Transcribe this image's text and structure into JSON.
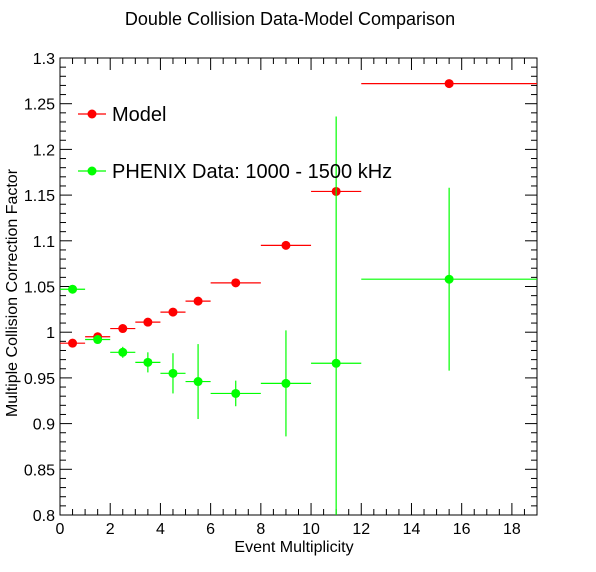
{
  "chart_data": {
    "type": "scatter",
    "title": "Double Collision Data-Model Comparison",
    "xlabel": "Event Multiplicity",
    "ylabel": "Multiple Collision Correction Factor",
    "xlim": [
      0,
      19
    ],
    "ylim": [
      0.8,
      1.3
    ],
    "x_ticks": [
      0,
      2,
      4,
      6,
      8,
      10,
      12,
      14,
      16,
      18
    ],
    "x_tick_labels": [
      "0",
      "2",
      "4",
      "6",
      "8",
      "10",
      "12",
      "14",
      "16",
      "18"
    ],
    "y_ticks": [
      0.8,
      0.85,
      0.9,
      0.95,
      1.0,
      1.05,
      1.1,
      1.15,
      1.2,
      1.25,
      1.3
    ],
    "y_tick_labels": [
      "0.8",
      "0.85",
      "0.9",
      "0.95",
      "1",
      "1.05",
      "1.1",
      "1.15",
      "1.2",
      "1.25",
      "1.3"
    ],
    "grid": false,
    "legend_position": "top-left",
    "series": [
      {
        "name": "Model",
        "color": "#ff0000",
        "points": [
          {
            "x": 0.5,
            "y": 0.988,
            "xerr": 0.5,
            "yerr": 0.0
          },
          {
            "x": 1.5,
            "y": 0.995,
            "xerr": 0.5,
            "yerr": 0.0
          },
          {
            "x": 2.5,
            "y": 1.004,
            "xerr": 0.5,
            "yerr": 0.0
          },
          {
            "x": 3.5,
            "y": 1.011,
            "xerr": 0.5,
            "yerr": 0.0
          },
          {
            "x": 4.5,
            "y": 1.022,
            "xerr": 0.5,
            "yerr": 0.0
          },
          {
            "x": 5.5,
            "y": 1.034,
            "xerr": 0.5,
            "yerr": 0.0
          },
          {
            "x": 7.0,
            "y": 1.054,
            "xerr": 1.0,
            "yerr": 0.0
          },
          {
            "x": 9.0,
            "y": 1.095,
            "xerr": 1.0,
            "yerr": 0.0
          },
          {
            "x": 11.0,
            "y": 1.154,
            "xerr": 1.0,
            "yerr": 0.0
          },
          {
            "x": 15.5,
            "y": 1.272,
            "xerr": 3.5,
            "yerr": 0.0
          }
        ]
      },
      {
        "name": "PHENIX Data: 1000 - 1500 kHz",
        "color": "#00ff00",
        "points": [
          {
            "x": 0.5,
            "y": 1.047,
            "xerr": 0.5,
            "yerr": 0.002
          },
          {
            "x": 1.5,
            "y": 0.992,
            "xerr": 0.5,
            "yerr": 0.004
          },
          {
            "x": 2.5,
            "y": 0.978,
            "xerr": 0.5,
            "yerr": 0.006
          },
          {
            "x": 3.5,
            "y": 0.967,
            "xerr": 0.5,
            "yerr": 0.011
          },
          {
            "x": 4.5,
            "y": 0.955,
            "xerr": 0.5,
            "yerr": 0.022
          },
          {
            "x": 5.5,
            "y": 0.946,
            "xerr": 0.5,
            "yerr": 0.041
          },
          {
            "x": 7.0,
            "y": 0.933,
            "xerr": 1.0,
            "yerr": 0.014
          },
          {
            "x": 9.0,
            "y": 0.944,
            "xerr": 1.0,
            "yerr": 0.058
          },
          {
            "x": 11.0,
            "y": 0.966,
            "xerr": 1.0,
            "yerr": 0.27
          },
          {
            "x": 15.5,
            "y": 1.058,
            "xerr": 3.5,
            "yerr": 0.1
          }
        ]
      }
    ]
  }
}
